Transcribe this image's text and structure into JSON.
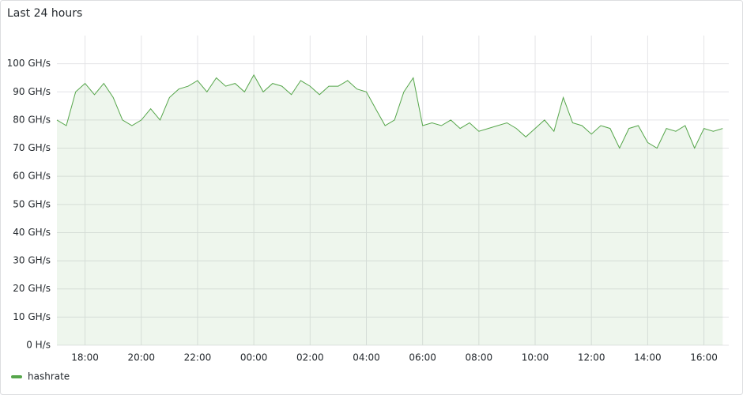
{
  "chart_data": {
    "type": "line",
    "title": "Last 24 hours",
    "x": [
      "17:00",
      "17:20",
      "17:40",
      "18:00",
      "18:20",
      "18:40",
      "19:00",
      "19:20",
      "19:40",
      "20:00",
      "20:20",
      "20:40",
      "21:00",
      "21:20",
      "21:40",
      "22:00",
      "22:20",
      "22:40",
      "23:00",
      "23:20",
      "23:40",
      "00:00",
      "00:20",
      "00:40",
      "01:00",
      "01:20",
      "01:40",
      "02:00",
      "02:20",
      "02:40",
      "03:00",
      "03:20",
      "03:40",
      "04:00",
      "04:20",
      "04:40",
      "05:00",
      "05:20",
      "05:40",
      "06:00",
      "06:20",
      "06:40",
      "07:00",
      "07:20",
      "07:40",
      "08:00",
      "08:20",
      "08:40",
      "09:00",
      "09:20",
      "09:40",
      "10:00",
      "10:20",
      "10:40",
      "11:00",
      "11:20",
      "11:40",
      "12:00",
      "12:20",
      "12:40",
      "13:00",
      "13:20",
      "13:40",
      "14:00",
      "14:20",
      "14:40",
      "15:00",
      "15:20",
      "15:40",
      "16:00",
      "16:20",
      "16:40"
    ],
    "series": [
      {
        "name": "hashrate",
        "color": "#56a64b",
        "values": [
          80,
          78,
          90,
          93,
          89,
          93,
          88,
          80,
          78,
          80,
          84,
          80,
          88,
          91,
          92,
          94,
          90,
          95,
          92,
          93,
          90,
          96,
          90,
          93,
          92,
          89,
          94,
          92,
          89,
          92,
          92,
          94,
          91,
          90,
          84,
          78,
          80,
          90,
          95,
          78,
          79,
          78,
          80,
          77,
          79,
          76,
          77,
          78,
          79,
          77,
          74,
          77,
          80,
          76,
          88,
          79,
          78,
          75,
          78,
          77,
          70,
          77,
          78,
          72,
          70,
          77,
          76,
          78,
          70,
          77,
          76,
          77
        ]
      }
    ],
    "xlim": [
      "17:00",
      "16:53"
    ],
    "xticks": [
      "18:00",
      "20:00",
      "22:00",
      "00:00",
      "02:00",
      "04:00",
      "06:00",
      "08:00",
      "10:00",
      "12:00",
      "14:00",
      "16:00"
    ],
    "ylim": [
      0,
      110
    ],
    "yticks": [
      {
        "value": 0,
        "label": "0 H/s"
      },
      {
        "value": 10,
        "label": "10 GH/s"
      },
      {
        "value": 20,
        "label": "20 GH/s"
      },
      {
        "value": 30,
        "label": "30 GH/s"
      },
      {
        "value": 40,
        "label": "40 GH/s"
      },
      {
        "value": 50,
        "label": "50 GH/s"
      },
      {
        "value": 60,
        "label": "60 GH/s"
      },
      {
        "value": 70,
        "label": "70 GH/s"
      },
      {
        "value": 80,
        "label": "80 GH/s"
      },
      {
        "value": 90,
        "label": "90 GH/s"
      },
      {
        "value": 100,
        "label": "100 GH/s"
      }
    ],
    "grid": true,
    "legend": "bottom-left"
  }
}
